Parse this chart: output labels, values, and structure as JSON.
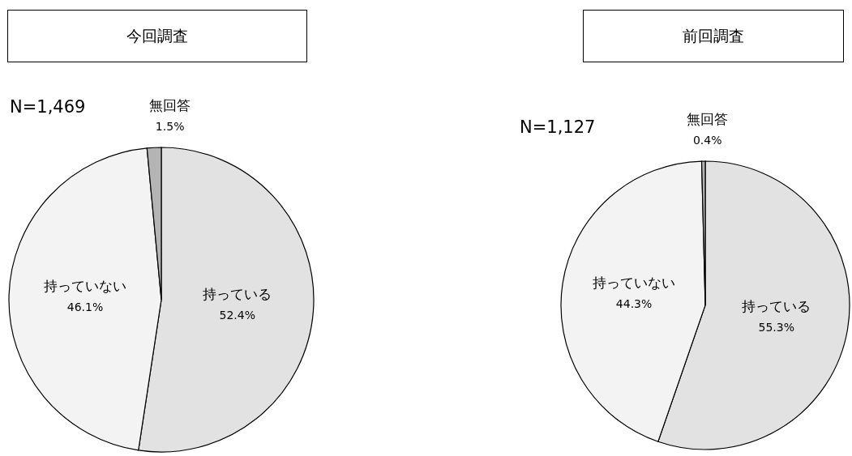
{
  "chart_data": [
    {
      "type": "pie",
      "title": "今回調査",
      "annotations": [
        "N=1,469"
      ],
      "categories": [
        "持っている",
        "持っていない",
        "無回答"
      ],
      "values": [
        52.4,
        46.1,
        1.5
      ],
      "value_labels": [
        "52.4%",
        "46.1%",
        "1.5%"
      ],
      "colors": [
        "#e2e2e2",
        "#f3f3f3",
        "#b4b4b4"
      ]
    },
    {
      "type": "pie",
      "title": "前回調査",
      "annotations": [
        "N=1,127"
      ],
      "categories": [
        "持っている",
        "持っていない",
        "無回答"
      ],
      "values": [
        55.3,
        44.3,
        0.4
      ],
      "value_labels": [
        "55.3%",
        "44.3%",
        "0.4%"
      ],
      "colors": [
        "#e2e2e2",
        "#f3f3f3",
        "#b4b4b4"
      ]
    }
  ]
}
